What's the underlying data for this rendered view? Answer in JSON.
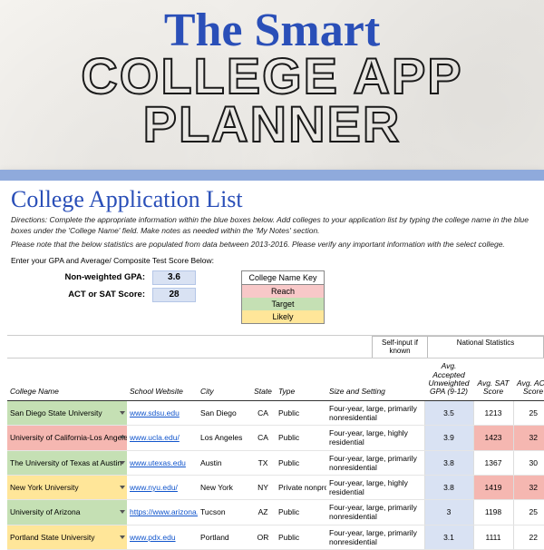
{
  "title": {
    "script": "The Smart",
    "line1": "COLLEGE APP",
    "line2": "PLANNER"
  },
  "sheet": {
    "section_title": "College Application List",
    "directions1": "Directions: Complete the appropriate information within the blue boxes below. Add colleges to your application list by typing the college name in the blue boxes under the 'College Name' field. Make notes as needed within the 'My Notes' section.",
    "directions2": "Please note that the below statistics are populated from data between 2013-2016. Please verify any important information with the select college.",
    "enter_label": "Enter your GPA and Average/ Composite Test Score Below:",
    "gpa_label": "Non-weighted GPA:",
    "gpa_value": "3.6",
    "score_label": "ACT or SAT Score:",
    "score_value": "28",
    "key": {
      "head": "College Name Key",
      "reach": "Reach",
      "target": "Target",
      "likely": "Likely"
    },
    "group_self": "Self-input if known",
    "group_nat": "National Statistics",
    "columns": {
      "name": "College Name",
      "site": "School Website",
      "city": "City",
      "state": "State",
      "type": "Type",
      "setting": "Size and Setting",
      "gpa": "Avg. Accepted Unweighted GPA (9-12)",
      "sat": "Avg. SAT Score",
      "act": "Avg. ACT Score"
    },
    "rows": [
      {
        "name": "San Diego State University",
        "name_bg": "bg-target",
        "site": "www.sdsu.edu",
        "city": "San Diego",
        "state": "CA",
        "type": "Public",
        "setting": "Four-year, large, primarily nonresidential",
        "gpa": "3.5",
        "gpa_bg": "bg-blue",
        "sat": "1213",
        "sat_bg": "",
        "act": "25",
        "act_bg": ""
      },
      {
        "name": "University of California-Los Angeles",
        "name_bg": "bg-reach",
        "site": "www.ucla.edu/",
        "city": "Los Angeles",
        "state": "CA",
        "type": "Public",
        "setting": "Four-year, large, highly residential",
        "gpa": "3.9",
        "gpa_bg": "bg-blue",
        "sat": "1423",
        "sat_bg": "bg-reach",
        "act": "32",
        "act_bg": "bg-reach"
      },
      {
        "name": "The University of Texas at Austin",
        "name_bg": "bg-target",
        "site": "www.utexas.edu",
        "city": "Austin",
        "state": "TX",
        "type": "Public",
        "setting": "Four-year, large, primarily nonresidential",
        "gpa": "3.8",
        "gpa_bg": "bg-blue",
        "sat": "1367",
        "sat_bg": "",
        "act": "30",
        "act_bg": ""
      },
      {
        "name": "New York University",
        "name_bg": "bg-likely",
        "site": "www.nyu.edu/",
        "city": "New York",
        "state": "NY",
        "type": "Private nonprofit",
        "setting": "Four-year, large, highly residential",
        "gpa": "3.8",
        "gpa_bg": "bg-blue",
        "sat": "1419",
        "sat_bg": "bg-reach",
        "act": "32",
        "act_bg": "bg-reach"
      },
      {
        "name": "University of Arizona",
        "name_bg": "bg-target",
        "site": "https://www.arizona.ed",
        "city": "Tucson",
        "state": "AZ",
        "type": "Public",
        "setting": "Four-year, large, primarily nonresidential",
        "gpa": "3",
        "gpa_bg": "bg-blue",
        "sat": "1198",
        "sat_bg": "",
        "act": "25",
        "act_bg": ""
      },
      {
        "name": "Portland State University",
        "name_bg": "bg-likely",
        "site": "www.pdx.edu",
        "city": "Portland",
        "state": "OR",
        "type": "Public",
        "setting": "Four-year, large, primarily nonresidential",
        "gpa": "3.1",
        "gpa_bg": "bg-blue",
        "sat": "1111",
        "sat_bg": "",
        "act": "22",
        "act_bg": ""
      }
    ]
  },
  "colors": {
    "accent_blue": "#2a4fb8",
    "bar_blue": "#8faadc",
    "input_blue": "#d9e2f3",
    "reach": "#f8c8c8",
    "target": "#c5e0b4",
    "likely": "#ffe699",
    "link": "#1155cc"
  }
}
